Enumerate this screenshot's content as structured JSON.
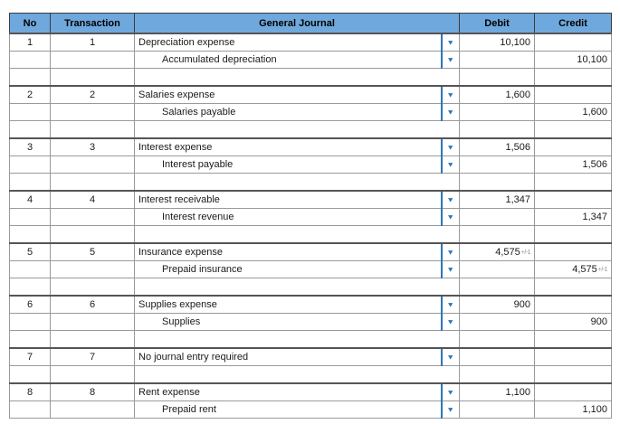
{
  "icons": {
    "dropdown_glyph": "▼"
  },
  "colors": {
    "header_bg": "#6FA8DC",
    "dropdown_blue": "#2E75B6",
    "grid_border": "#9A9A9A",
    "group_separator_border": "#555555",
    "text": "#1A1A1A"
  },
  "table": {
    "columns": [
      "No",
      "Transaction",
      "General Journal",
      "Debit",
      "Credit"
    ],
    "groups": [
      {
        "no": "1",
        "transaction": "1",
        "entries": [
          {
            "account": "Depreciation expense",
            "indent": false,
            "debit": "10,100",
            "credit": ""
          },
          {
            "account": "Accumulated depreciation",
            "indent": true,
            "debit": "",
            "credit": "10,100"
          }
        ]
      },
      {
        "no": "2",
        "transaction": "2",
        "entries": [
          {
            "account": "Salaries expense",
            "indent": false,
            "debit": "1,600",
            "credit": ""
          },
          {
            "account": "Salaries payable",
            "indent": true,
            "debit": "",
            "credit": "1,600"
          }
        ]
      },
      {
        "no": "3",
        "transaction": "3",
        "entries": [
          {
            "account": "Interest expense",
            "indent": false,
            "debit": "1,506",
            "credit": ""
          },
          {
            "account": "Interest payable",
            "indent": true,
            "debit": "",
            "credit": "1,506"
          }
        ]
      },
      {
        "no": "4",
        "transaction": "4",
        "entries": [
          {
            "account": "Interest receivable",
            "indent": false,
            "debit": "1,347",
            "credit": ""
          },
          {
            "account": "Interest revenue",
            "indent": true,
            "debit": "",
            "credit": "1,347"
          }
        ]
      },
      {
        "no": "5",
        "transaction": "5",
        "entries": [
          {
            "account": "Insurance expense",
            "indent": false,
            "debit": "4,575",
            "debit_suffix": "+/-1",
            "credit": ""
          },
          {
            "account": "Prepaid insurance",
            "indent": true,
            "debit": "",
            "credit": "4,575",
            "credit_suffix": "+/-1"
          }
        ]
      },
      {
        "no": "6",
        "transaction": "6",
        "entries": [
          {
            "account": "Supplies expense",
            "indent": false,
            "debit": "900",
            "credit": ""
          },
          {
            "account": "Supplies",
            "indent": true,
            "debit": "",
            "credit": "900"
          }
        ]
      },
      {
        "no": "7",
        "transaction": "7",
        "entries": [
          {
            "account": "No journal entry required",
            "indent": false,
            "debit": "",
            "credit": ""
          }
        ]
      },
      {
        "no": "8",
        "transaction": "8",
        "entries": [
          {
            "account": "Rent expense",
            "indent": false,
            "debit": "1,100",
            "credit": ""
          },
          {
            "account": "Prepaid rent",
            "indent": true,
            "debit": "",
            "credit": "1,100"
          }
        ]
      }
    ]
  }
}
